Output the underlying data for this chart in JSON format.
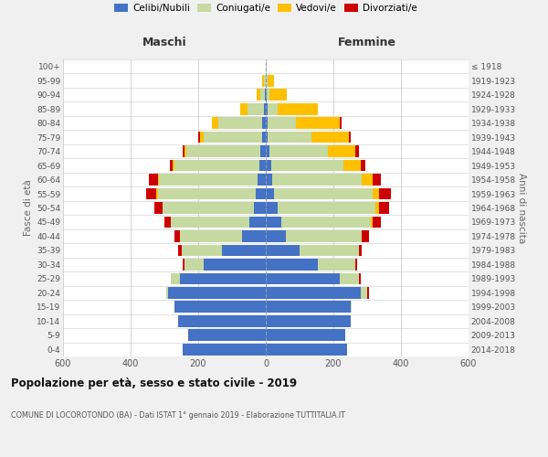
{
  "age_groups": [
    "0-4",
    "5-9",
    "10-14",
    "15-19",
    "20-24",
    "25-29",
    "30-34",
    "35-39",
    "40-44",
    "45-49",
    "50-54",
    "55-59",
    "60-64",
    "65-69",
    "70-74",
    "75-79",
    "80-84",
    "85-89",
    "90-94",
    "95-99",
    "100+"
  ],
  "birth_years": [
    "2014-2018",
    "2009-2013",
    "2004-2008",
    "1999-2003",
    "1994-1998",
    "1989-1993",
    "1984-1988",
    "1979-1983",
    "1974-1978",
    "1969-1973",
    "1964-1968",
    "1959-1963",
    "1954-1958",
    "1949-1953",
    "1944-1948",
    "1939-1943",
    "1934-1938",
    "1929-1933",
    "1924-1928",
    "1919-1923",
    "≤ 1918"
  ],
  "males": {
    "celibi": [
      245,
      230,
      260,
      270,
      290,
      255,
      185,
      130,
      70,
      50,
      35,
      30,
      25,
      20,
      15,
      10,
      10,
      5,
      2,
      0,
      0
    ],
    "coniugati": [
      0,
      0,
      0,
      0,
      5,
      25,
      55,
      120,
      185,
      230,
      270,
      290,
      290,
      250,
      220,
      175,
      130,
      50,
      15,
      5,
      0
    ],
    "vedovi": [
      0,
      0,
      0,
      0,
      0,
      0,
      0,
      0,
      0,
      0,
      0,
      5,
      5,
      5,
      5,
      10,
      20,
      20,
      10,
      5,
      0
    ],
    "divorziati": [
      0,
      0,
      0,
      0,
      0,
      0,
      5,
      10,
      15,
      20,
      25,
      30,
      25,
      10,
      5,
      5,
      0,
      0,
      0,
      0,
      0
    ]
  },
  "females": {
    "nubili": [
      240,
      235,
      250,
      250,
      280,
      220,
      155,
      100,
      60,
      45,
      35,
      25,
      20,
      15,
      10,
      5,
      5,
      5,
      2,
      0,
      0
    ],
    "coniugate": [
      0,
      0,
      0,
      5,
      20,
      55,
      110,
      175,
      225,
      265,
      290,
      290,
      265,
      215,
      175,
      130,
      85,
      30,
      10,
      5,
      0
    ],
    "vedove": [
      0,
      0,
      0,
      0,
      0,
      0,
      0,
      0,
      0,
      5,
      10,
      20,
      30,
      50,
      80,
      110,
      130,
      120,
      50,
      20,
      0
    ],
    "divorziate": [
      0,
      0,
      0,
      0,
      5,
      5,
      5,
      10,
      20,
      25,
      30,
      35,
      25,
      15,
      10,
      5,
      5,
      0,
      0,
      0,
      0
    ]
  },
  "colors": {
    "celibi": "#4472c4",
    "coniugati": "#c5d9a0",
    "vedovi": "#ffc000",
    "divorziati": "#cc0000"
  },
  "legend_labels": [
    "Celibi/Nubili",
    "Coniugati/e",
    "Vedovi/e",
    "Divorziati/e"
  ],
  "legend_colors": [
    "#4472c4",
    "#c5d9a0",
    "#ffc000",
    "#cc0000"
  ],
  "title": "Popolazione per età, sesso e stato civile - 2019",
  "subtitle": "COMUNE DI LOCOROTONDO (BA) - Dati ISTAT 1° gennaio 2019 - Elaborazione TUTTITALIA.IT",
  "xlabel_left": "Maschi",
  "xlabel_right": "Femmine",
  "ylabel_left": "Fasce di età",
  "ylabel_right": "Anni di nascita",
  "xlim": 600,
  "bg_color": "#f0f0f0",
  "plot_bg": "#ffffff",
  "grid_color": "#cccccc"
}
